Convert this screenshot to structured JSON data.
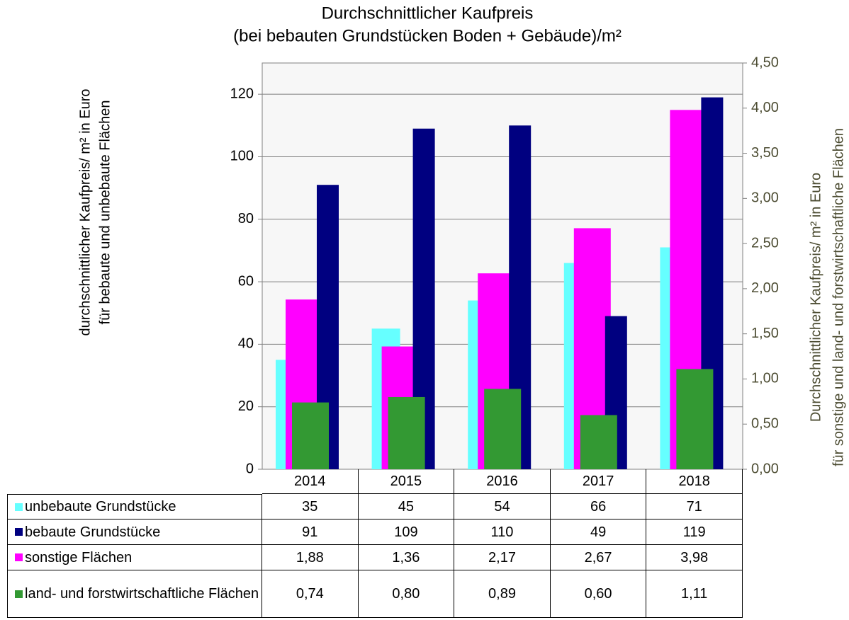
{
  "chart_data": {
    "type": "bar",
    "title": [
      "Durchschnittlicher Kaufpreis",
      "(bei bebauten Grundstücken Boden + Gebäude)/m²"
    ],
    "y_label": [
      "durchschnittlicher  Kaufpreis/ m² in Euro",
      "für bebaute und unbebaute Flächen"
    ],
    "y2_label": [
      "Durchschnittlicher  Kaufpreis/ m² in Euro",
      "für sonstige   und land- und forstwirtschaftliche Flächen"
    ],
    "categories": [
      "2014",
      "2015",
      "2016",
      "2017",
      "2018"
    ],
    "series": [
      {
        "name": "unbebaute Grundstücke",
        "color": "#66ffff",
        "values": [
          35,
          45,
          54,
          66,
          71
        ]
      },
      {
        "name": "bebaute Grundstücke",
        "color": "#000080",
        "values": [
          91,
          109,
          110,
          49,
          119
        ]
      },
      {
        "name": "sonstige Flächen",
        "color": "#ff00ff",
        "axis": "y2",
        "values": [
          1.88,
          1.36,
          2.17,
          2.67,
          3.98
        ],
        "value_labels": [
          "1,88",
          "1,36",
          "2,17",
          "2,67",
          "3,98"
        ]
      },
      {
        "name": "land- und forstwirtschaftliche Flächen",
        "color": "#339933",
        "axis": "y2",
        "values": [
          0.74,
          0.8,
          0.89,
          0.6,
          1.11
        ],
        "value_labels": [
          "0,74",
          "0,80",
          "0,89",
          "0,60",
          "1,11"
        ]
      }
    ],
    "ylim": [
      0,
      130
    ],
    "yticks": [
      0,
      20,
      40,
      60,
      80,
      100,
      120
    ],
    "y2lim": [
      0,
      4.5
    ],
    "y2ticks": [
      {
        "value": 0,
        "label": "0,00"
      },
      {
        "value": 0.5,
        "label": "0,50"
      },
      {
        "value": 1,
        "label": "1,00"
      },
      {
        "value": 1.5,
        "label": "1,50"
      },
      {
        "value": 2,
        "label": "2,00"
      },
      {
        "value": 2.5,
        "label": "2,50"
      },
      {
        "value": 3,
        "label": "3,00"
      },
      {
        "value": 3.5,
        "label": "3,50"
      },
      {
        "value": 4,
        "label": "4,00"
      },
      {
        "value": 4.5,
        "label": "4,50"
      }
    ],
    "grid": true,
    "data_table": true
  }
}
